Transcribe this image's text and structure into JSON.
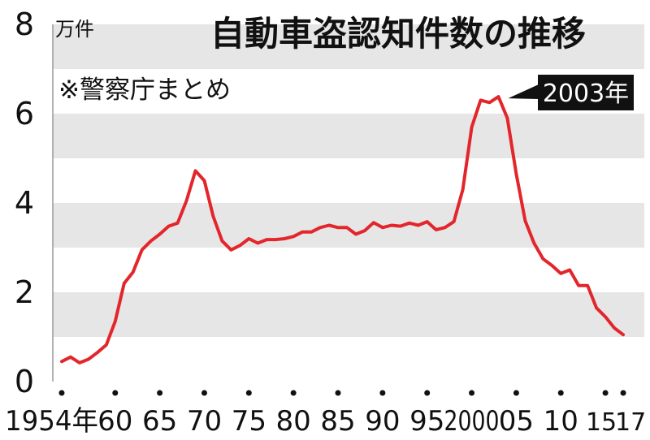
{
  "chart_data": {
    "type": "line",
    "title": "自動車盗認知件数の推移",
    "source_note": "※警察庁まとめ",
    "ylabel": "万件",
    "ylim": [
      0,
      8
    ],
    "y_ticks": [
      {
        "value": 0,
        "label": "0"
      },
      {
        "value": 2,
        "label": "2"
      },
      {
        "value": 4,
        "label": "4"
      },
      {
        "value": 6,
        "label": "6"
      },
      {
        "value": 8,
        "label": "8"
      }
    ],
    "xlim": [
      1953,
      2018
    ],
    "x_ticks": [
      {
        "value": 1954,
        "label": "1954年"
      },
      {
        "value": 1960,
        "label": "60"
      },
      {
        "value": 1965,
        "label": "65"
      },
      {
        "value": 1970,
        "label": "70"
      },
      {
        "value": 1975,
        "label": "75"
      },
      {
        "value": 1980,
        "label": "80"
      },
      {
        "value": 1985,
        "label": "85"
      },
      {
        "value": 1990,
        "label": "90"
      },
      {
        "value": 1995,
        "label": "95"
      },
      {
        "value": 2000,
        "label": "2000"
      },
      {
        "value": 2005,
        "label": "05"
      },
      {
        "value": 2010,
        "label": "10"
      },
      {
        "value": 2015,
        "label": "15"
      },
      {
        "value": 2017,
        "label": "17"
      }
    ],
    "grid": "horizontal bands",
    "colors": {
      "line": "#e3262b",
      "band": "#e6e6e6",
      "annotation_bg": "#111111",
      "annotation_text": "#ffffff"
    },
    "annotation": {
      "label": "2003年",
      "x": 2003,
      "y": 6.38
    },
    "x": [
      1954,
      1955,
      1956,
      1957,
      1958,
      1959,
      1960,
      1961,
      1962,
      1963,
      1964,
      1965,
      1966,
      1967,
      1968,
      1969,
      1970,
      1971,
      1972,
      1973,
      1974,
      1975,
      1976,
      1977,
      1978,
      1979,
      1980,
      1981,
      1982,
      1983,
      1984,
      1985,
      1986,
      1987,
      1988,
      1989,
      1990,
      1991,
      1992,
      1993,
      1994,
      1995,
      1996,
      1997,
      1998,
      1999,
      2000,
      2001,
      2002,
      2003,
      2004,
      2005,
      2006,
      2007,
      2008,
      2009,
      2010,
      2011,
      2012,
      2013,
      2014,
      2015,
      2016,
      2017
    ],
    "series": [
      {
        "values": [
          0.45,
          0.55,
          0.42,
          0.5,
          0.65,
          0.82,
          1.35,
          2.2,
          2.45,
          2.95,
          3.15,
          3.3,
          3.48,
          3.55,
          4.05,
          4.72,
          4.5,
          3.7,
          3.15,
          2.95,
          3.05,
          3.2,
          3.1,
          3.18,
          3.18,
          3.2,
          3.25,
          3.35,
          3.35,
          3.45,
          3.5,
          3.45,
          3.45,
          3.3,
          3.38,
          3.56,
          3.45,
          3.5,
          3.48,
          3.55,
          3.5,
          3.58,
          3.4,
          3.45,
          3.58,
          4.3,
          5.7,
          6.3,
          6.25,
          6.38,
          5.9,
          4.65,
          3.6,
          3.1,
          2.75,
          2.6,
          2.42,
          2.5,
          2.15,
          2.15,
          1.65,
          1.45,
          1.2,
          1.05
        ]
      }
    ]
  }
}
